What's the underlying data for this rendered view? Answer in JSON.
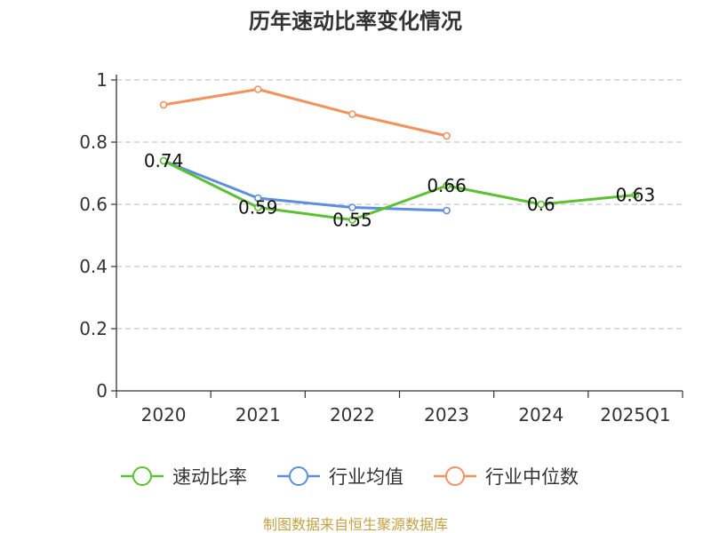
{
  "chart_data": {
    "type": "line",
    "title": "历年速动比率变化情况",
    "categories": [
      "2020",
      "2021",
      "2022",
      "2023",
      "2024",
      "2025Q1"
    ],
    "ylim": [
      0,
      1
    ],
    "yticks": [
      0,
      0.2,
      0.4,
      0.6,
      0.8,
      1
    ],
    "ytick_labels": [
      "0",
      "0.2",
      "0.4",
      "0.6",
      "0.8",
      "1"
    ],
    "grid": true,
    "legend_position": "bottom",
    "series": [
      {
        "name": "速动比率",
        "color": "#5cc130",
        "values": [
          0.74,
          0.59,
          0.55,
          0.66,
          0.6,
          0.63
        ],
        "labels": [
          "0.74",
          "0.59",
          "0.55",
          "0.66",
          "0.6",
          "0.63"
        ]
      },
      {
        "name": "行业均值",
        "color": "#5b8fe0",
        "values": [
          0.74,
          0.62,
          0.59,
          0.58,
          null,
          null
        ]
      },
      {
        "name": "行业中位数",
        "color": "#f5915a",
        "values": [
          0.92,
          0.97,
          0.89,
          0.82,
          null,
          null
        ]
      }
    ]
  },
  "source": "制图数据来自恒生聚源数据库"
}
